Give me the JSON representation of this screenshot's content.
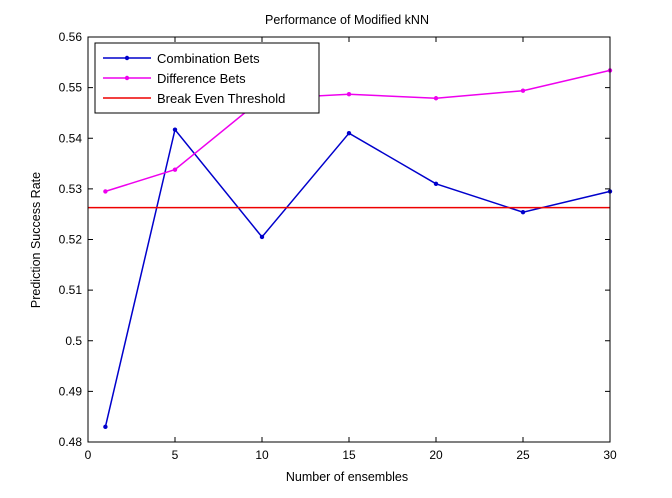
{
  "chart_data": {
    "type": "line",
    "title": "Performance of Modified kNN",
    "xlabel": "Number of ensembles",
    "ylabel": "Prediction Success Rate",
    "xlim": [
      0,
      30
    ],
    "ylim": [
      0.48,
      0.56
    ],
    "xticks": [
      "0",
      "5",
      "10",
      "15",
      "20",
      "25",
      "30"
    ],
    "yticks": [
      "0.48",
      "0.49",
      "0.5",
      "0.51",
      "0.52",
      "0.53",
      "0.54",
      "0.55",
      "0.56"
    ],
    "xtick_values": [
      0,
      5,
      10,
      15,
      20,
      25,
      30
    ],
    "ytick_values": [
      0.48,
      0.49,
      0.5,
      0.51,
      0.52,
      0.53,
      0.54,
      0.55,
      0.56
    ],
    "grid": false,
    "legend_position": "top-left",
    "series": [
      {
        "name": "Combination Bets",
        "color": "#0000cc",
        "marker": "dot",
        "x": [
          1,
          5,
          10,
          15,
          20,
          25,
          30
        ],
        "y": [
          0.483,
          0.5417,
          0.5205,
          0.541,
          0.531,
          0.5254,
          0.5295
        ]
      },
      {
        "name": "Difference Bets",
        "color": "#ee00ee",
        "marker": "dot",
        "x": [
          1,
          5,
          10,
          15,
          20,
          25,
          30
        ],
        "y": [
          0.5295,
          0.5338,
          0.5478,
          0.5487,
          0.5479,
          0.5494,
          0.5534
        ]
      },
      {
        "name": "Break Even Threshold",
        "color": "#ee0000",
        "marker": "none",
        "x": [
          0,
          30
        ],
        "y": [
          0.5263,
          0.5263
        ]
      }
    ]
  }
}
